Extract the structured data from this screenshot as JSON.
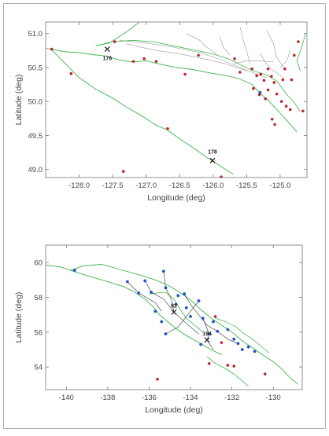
{
  "colors": {
    "coast": "#3db54a",
    "track": "#9a9a9a",
    "red_station": "#c0262b",
    "blue_station": "#1f55c8",
    "frame": "#b0b0b0",
    "text": "#444444"
  },
  "map1": {
    "xlabel": "Longitude (deg)",
    "ylabel": "Latitude (deg)",
    "xlim": [
      -128.5,
      -124.6
    ],
    "ylim": [
      48.88,
      51.17
    ],
    "xticks": [
      -128.0,
      -127.5,
      -127.0,
      -126.5,
      -126.0,
      -125.5,
      -125.0
    ],
    "xtick_labels": [
      "-128.0",
      "-127.5",
      "-127.0",
      "-126.5",
      "-126.0",
      "-125.5",
      "-125.0"
    ],
    "yticks": [
      49.0,
      49.5,
      50.0,
      50.5,
      51.0
    ],
    "ytick_labels": [
      "49.0",
      "49.5",
      "50.0",
      "50.5",
      "51.0"
    ],
    "crosses": [
      {
        "label": "176",
        "lon": -127.58,
        "lat": 50.77
      },
      {
        "label": "178",
        "lon": -126.01,
        "lat": 49.13
      }
    ],
    "red_stations": [
      [
        -128.41,
        50.77
      ],
      [
        -128.12,
        50.41
      ],
      [
        -127.19,
        50.59
      ],
      [
        -127.34,
        48.97
      ],
      [
        -126.68,
        49.6
      ],
      [
        -126.85,
        50.59
      ],
      [
        -127.03,
        50.63
      ],
      [
        -125.68,
        50.63
      ],
      [
        -125.6,
        50.43
      ],
      [
        -125.42,
        50.48
      ],
      [
        -125.35,
        50.38
      ],
      [
        -125.29,
        50.4
      ],
      [
        -125.24,
        50.31
      ],
      [
        -125.13,
        50.37
      ],
      [
        -125.09,
        50.28
      ],
      [
        -125.4,
        50.19
      ],
      [
        -125.18,
        50.17
      ],
      [
        -125.05,
        50.11
      ],
      [
        -124.98,
        50.0
      ],
      [
        -124.85,
        49.88
      ],
      [
        -124.96,
        50.32
      ],
      [
        -124.93,
        50.48
      ],
      [
        -124.79,
        50.68
      ],
      [
        -124.73,
        50.88
      ],
      [
        -125.12,
        49.74
      ],
      [
        -125.08,
        49.66
      ],
      [
        -124.91,
        49.93
      ],
      [
        -125.88,
        48.89
      ],
      [
        -125.31,
        50.1
      ],
      [
        -125.22,
        50.04
      ],
      [
        -125.18,
        50.48
      ],
      [
        -124.83,
        50.32
      ],
      [
        -126.22,
        50.68
      ],
      [
        -127.47,
        50.88
      ],
      [
        -124.66,
        49.86
      ],
      [
        -126.42,
        50.4
      ]
    ],
    "blue_stations": [
      [
        -125.3,
        50.13
      ]
    ]
  },
  "map2": {
    "xlabel": "Longitude (deg)",
    "ylabel": "Latitude (deg)",
    "xlim": [
      -141.0,
      -128.6
    ],
    "ylim": [
      52.7,
      61.0
    ],
    "xticks": [
      -140,
      -138,
      -136,
      -134,
      -132,
      -130
    ],
    "xtick_labels": [
      "-140",
      "-138",
      "-136",
      "-134",
      "-132",
      "-130"
    ],
    "yticks": [
      54,
      56,
      58,
      60
    ],
    "ytick_labels": [
      "54",
      "56",
      "58",
      "60"
    ],
    "crosses": [
      {
        "label": "82",
        "lon": -134.8,
        "lat": 57.15
      },
      {
        "label": "194",
        "lon": -133.2,
        "lat": 55.55
      }
    ],
    "blue_stations": [
      [
        -139.6,
        59.55
      ],
      [
        -137.05,
        58.9
      ],
      [
        -136.2,
        58.95
      ],
      [
        -135.9,
        58.3
      ],
      [
        -135.7,
        57.2
      ],
      [
        -135.3,
        59.5
      ],
      [
        -135.2,
        58.55
      ],
      [
        -134.6,
        58.1
      ],
      [
        -134.3,
        58.2
      ],
      [
        -134.2,
        57.4
      ],
      [
        -134.0,
        56.9
      ],
      [
        -133.6,
        57.8
      ],
      [
        -133.4,
        56.8
      ],
      [
        -133.1,
        55.9
      ],
      [
        -132.7,
        56.05
      ],
      [
        -132.2,
        56.15
      ],
      [
        -131.9,
        55.6
      ],
      [
        -131.7,
        55.35
      ],
      [
        -131.2,
        55.15
      ],
      [
        -135.2,
        55.9
      ],
      [
        -132.9,
        56.6
      ],
      [
        -136.5,
        58.25
      ],
      [
        -134.7,
        57.6
      ],
      [
        -133.5,
        55.3
      ],
      [
        -131.5,
        55.0
      ],
      [
        -135.4,
        56.6
      ],
      [
        -130.9,
        54.9
      ]
    ],
    "red_stations": [
      [
        -135.6,
        53.3
      ],
      [
        -133.1,
        54.2
      ],
      [
        -132.2,
        54.1
      ],
      [
        -131.9,
        54.05
      ],
      [
        -130.4,
        53.6
      ],
      [
        -132.8,
        56.9
      ],
      [
        -132.5,
        55.4
      ]
    ]
  }
}
